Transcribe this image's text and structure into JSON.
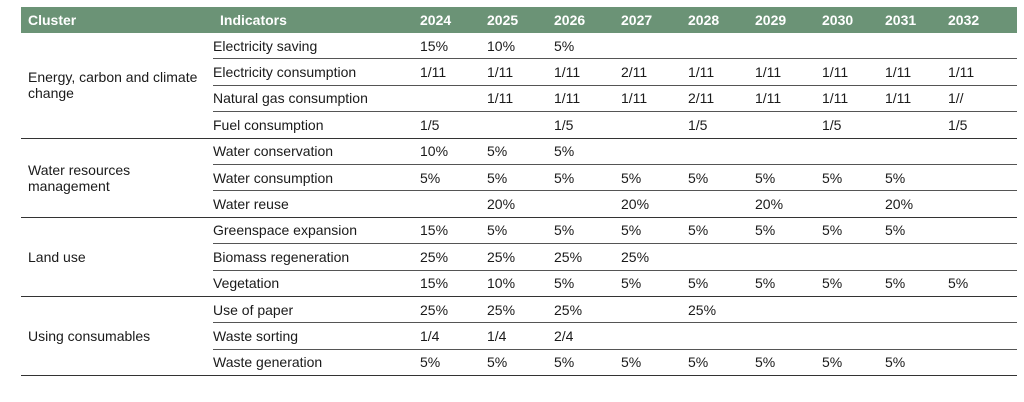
{
  "header": {
    "cluster": "Cluster",
    "indicators": "Indicators",
    "years": [
      "2024",
      "2025",
      "2026",
      "2027",
      "2028",
      "2029",
      "2030",
      "2031",
      "2032"
    ]
  },
  "groups": [
    {
      "cluster": "Energy, carbon and climate change",
      "rows": [
        {
          "indicator": "Electricity saving",
          "values": [
            "15%",
            "10%",
            "5%",
            "",
            "",
            "",
            "",
            "",
            ""
          ]
        },
        {
          "indicator": "Electricity consumption",
          "values": [
            "1/11",
            "1/11",
            "1/11",
            "2/11",
            "1/11",
            "1/11",
            "1/11",
            "1/11",
            "1/11"
          ]
        },
        {
          "indicator": "Natural gas consumption",
          "values": [
            "",
            "1/11",
            "1/11",
            "1/11",
            "2/11",
            "1/11",
            "1/11",
            "1/11",
            "1//"
          ]
        },
        {
          "indicator": "Fuel consumption",
          "values": [
            "1/5",
            "",
            "1/5",
            "",
            "1/5",
            "",
            "1/5",
            "",
            "1/5"
          ]
        }
      ]
    },
    {
      "cluster": "Water resources management",
      "rows": [
        {
          "indicator": "Water conservation",
          "values": [
            "10%",
            "5%",
            "5%",
            "",
            "",
            "",
            "",
            "",
            ""
          ]
        },
        {
          "indicator": "Water consumption",
          "values": [
            "5%",
            "5%",
            "5%",
            "5%",
            "5%",
            "5%",
            "5%",
            "5%",
            ""
          ]
        },
        {
          "indicator": "Water reuse",
          "values": [
            "",
            "20%",
            "",
            "20%",
            "",
            "20%",
            "",
            "20%",
            ""
          ]
        }
      ]
    },
    {
      "cluster": "Land use",
      "rows": [
        {
          "indicator": "Greenspace expansion",
          "values": [
            "15%",
            "5%",
            "5%",
            "5%",
            "5%",
            "5%",
            "5%",
            "5%",
            ""
          ]
        },
        {
          "indicator": "Biomass regeneration",
          "values": [
            "25%",
            "25%",
            "25%",
            "25%",
            "",
            "",
            "",
            "",
            ""
          ]
        },
        {
          "indicator": "Vegetation",
          "values": [
            "15%",
            "10%",
            "5%",
            "5%",
            "5%",
            "5%",
            "5%",
            "5%",
            "5%"
          ]
        }
      ]
    },
    {
      "cluster": "Using consumables",
      "rows": [
        {
          "indicator": "Use of paper",
          "values": [
            "25%",
            "25%",
            "25%",
            "",
            "25%",
            "",
            "",
            "",
            ""
          ]
        },
        {
          "indicator": "Waste sorting",
          "values": [
            "1/4",
            "1/4",
            "2/4",
            "",
            "",
            "",
            "",
            "",
            ""
          ]
        },
        {
          "indicator": "Waste generation",
          "values": [
            "5%",
            "5%",
            "5%",
            "5%",
            "5%",
            "5%",
            "5%",
            "5%",
            ""
          ]
        }
      ]
    }
  ]
}
